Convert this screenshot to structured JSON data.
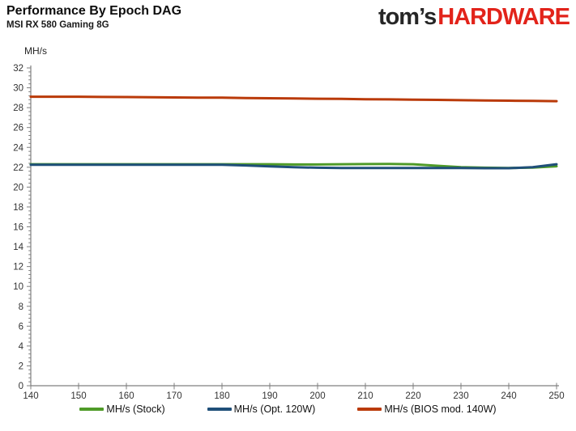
{
  "header": {
    "title": "Performance By Epoch DAG",
    "subtitle": "MSI RX 580 Gaming 8G"
  },
  "logo": {
    "part1": "tom’s",
    "part2": "HARDWARE",
    "dark_color": "#262626",
    "red_color": "#E2231A"
  },
  "colors": {
    "axis": "#7f7f7f",
    "tick_label": "#333333",
    "stock_green": "#4F9B28",
    "opt_blue": "#1F4F79",
    "bios_red": "#BA3A09"
  },
  "chart_data": {
    "type": "line",
    "title": "Performance By Epoch DAG",
    "subtitle": "MSI RX 580 Gaming 8G",
    "xlabel": "",
    "ylabel": "MH/s",
    "xlim": [
      140,
      250
    ],
    "xtick_step": 10,
    "ylim": [
      0,
      32
    ],
    "ytick_step": 2,
    "ytick_minor_step": 0.4,
    "grid": false,
    "legend_position": "bottom",
    "x": [
      140,
      145,
      150,
      155,
      160,
      165,
      170,
      175,
      180,
      185,
      190,
      195,
      200,
      205,
      210,
      215,
      220,
      225,
      230,
      235,
      240,
      245,
      250
    ],
    "series": [
      {
        "name": "MH/s (Stock)",
        "color": "#4F9B28",
        "values": [
          22.3,
          22.3,
          22.3,
          22.3,
          22.3,
          22.3,
          22.3,
          22.3,
          22.3,
          22.3,
          22.3,
          22.28,
          22.28,
          22.3,
          22.32,
          22.33,
          22.3,
          22.15,
          22.0,
          21.95,
          21.93,
          21.97,
          22.1
        ]
      },
      {
        "name": "MH/s (Opt. 120W)",
        "color": "#1F4F79",
        "values": [
          22.25,
          22.25,
          22.25,
          22.25,
          22.25,
          22.25,
          22.25,
          22.25,
          22.25,
          22.18,
          22.08,
          22.0,
          21.95,
          21.93,
          21.92,
          21.92,
          21.93,
          21.93,
          21.92,
          21.9,
          21.9,
          22.0,
          22.3
        ]
      },
      {
        "name": "MH/s (BIOS mod. 140W)",
        "color": "#BA3A09",
        "values": [
          29.1,
          29.1,
          29.1,
          29.08,
          29.07,
          29.05,
          29.03,
          29.0,
          29.0,
          28.97,
          28.95,
          28.93,
          28.9,
          28.88,
          28.85,
          28.83,
          28.8,
          28.78,
          28.75,
          28.73,
          28.7,
          28.68,
          28.65
        ]
      }
    ]
  }
}
